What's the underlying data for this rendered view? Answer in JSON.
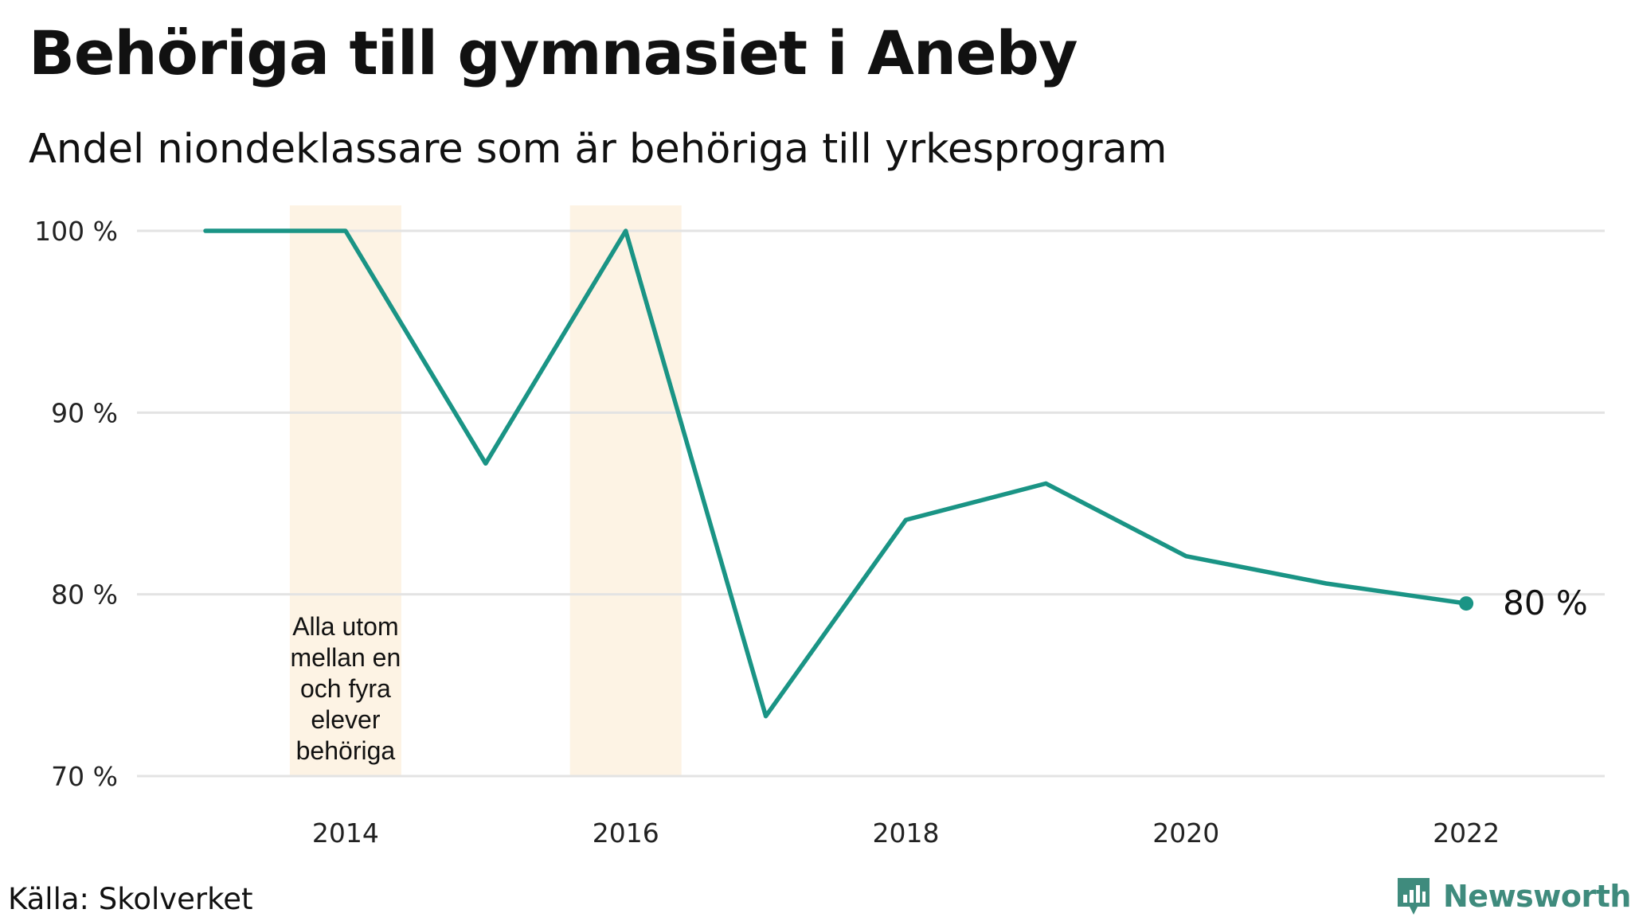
{
  "title": "Behöriga till gymnasiet i Aneby",
  "subtitle": "Andel niondeklassare som är behöriga till yrkesprogram",
  "source": "Källa: Skolverket",
  "brand": "Newsworthy",
  "colors": {
    "line": "#1a9485",
    "highlight": "#fdf3e4",
    "grid": "#e3e3e3",
    "brand": "#3f8b7d"
  },
  "chart_data": {
    "type": "line",
    "x": [
      2013,
      2014,
      2015,
      2016,
      2017,
      2018,
      2019,
      2020,
      2021,
      2022
    ],
    "series": [
      {
        "values": [
          100,
          100,
          87.2,
          100,
          73.3,
          84.1,
          86.1,
          82.1,
          80.6,
          79.5
        ]
      }
    ],
    "xticks": [
      "2014",
      "2016",
      "2018",
      "2020",
      "2022"
    ],
    "xtick_values": [
      2014,
      2016,
      2018,
      2020,
      2022
    ],
    "yticks": [
      "70 %",
      "80 %",
      "90 %",
      "100 %"
    ],
    "ytick_values": [
      70,
      80,
      90,
      100
    ],
    "ylim": [
      70,
      100
    ],
    "xlim": [
      2012.5,
      2023.1
    ],
    "grid": true,
    "highlight_years": [
      2014,
      2016
    ],
    "annotation": {
      "year": 2014,
      "lines": [
        "Alla utom",
        "mellan en",
        "och fyra",
        "elever",
        "behöriga"
      ]
    },
    "end_label": "80  %"
  }
}
